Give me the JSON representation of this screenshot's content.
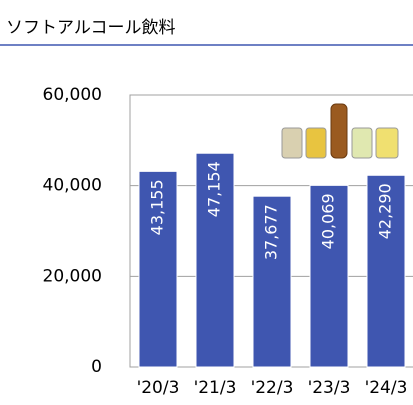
{
  "chart_data": {
    "type": "bar",
    "title": "ソフトアルコール飲料",
    "categories": [
      "'20/3",
      "'21/3",
      "'22/3",
      "'23/3",
      "'24/3"
    ],
    "values": [
      43155,
      47154,
      37677,
      40069,
      42290
    ],
    "value_labels": [
      "43,155",
      "47,154",
      "37,677",
      "40,069",
      "42,290"
    ],
    "color": "#3f56b0",
    "ylim": [
      0,
      60000
    ],
    "yticks": [
      0,
      {
        "value": 20000,
        "label": "20,000"
      },
      {
        "value": 40000,
        "label": "40,000"
      },
      {
        "value": 60000,
        "label": "60,000"
      }
    ],
    "grid": true
  }
}
